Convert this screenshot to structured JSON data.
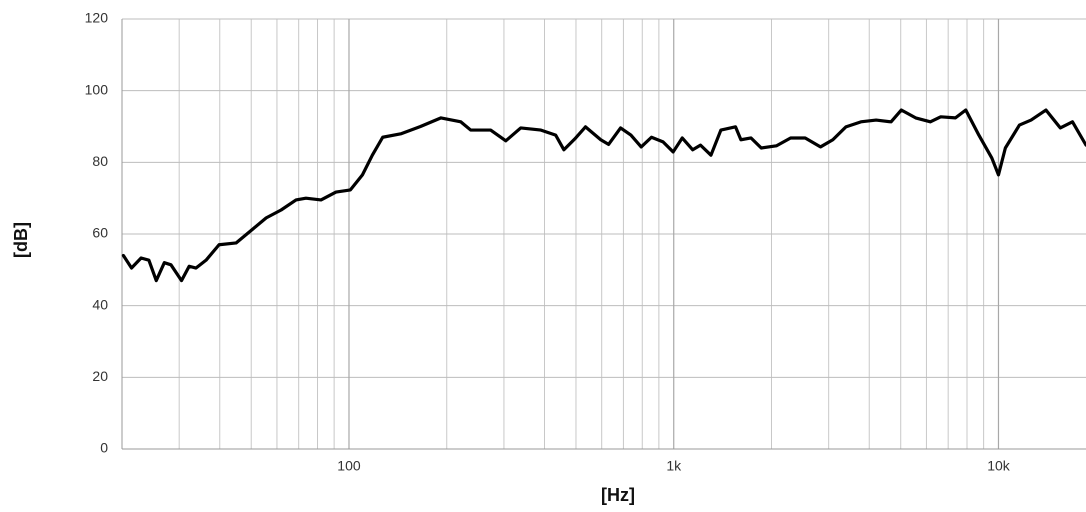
{
  "chart_data": {
    "type": "line",
    "xlabel": "[Hz]",
    "ylabel": "[dB]",
    "xscale": "log",
    "xlim": [
      20,
      18600
    ],
    "ylim": [
      0,
      120
    ],
    "xticks": [
      {
        "value": 100,
        "label": "100"
      },
      {
        "value": 1000,
        "label": "1k"
      },
      {
        "value": 10000,
        "label": "10k"
      }
    ],
    "xminor": [
      20,
      30,
      40,
      50,
      60,
      70,
      80,
      90,
      200,
      300,
      400,
      500,
      600,
      700,
      800,
      900,
      2000,
      3000,
      4000,
      5000,
      6000,
      7000,
      8000,
      9000
    ],
    "yticks": [
      0,
      20,
      40,
      60,
      80,
      100,
      120
    ],
    "grid": true,
    "x": [
      20.2,
      21.4,
      22.9,
      24.2,
      25.5,
      27,
      28.3,
      30.5,
      32.2,
      33.8,
      36.3,
      39.8,
      44.9,
      50,
      55.6,
      61.8,
      68.7,
      73.7,
      82,
      91.2,
      101,
      110,
      118,
      127,
      145,
      166,
      192,
      221,
      237,
      273,
      304,
      338,
      390,
      433,
      459,
      499,
      535,
      596,
      630,
      686,
      738,
      794,
      854,
      927,
      996,
      1062,
      1144,
      1209,
      1302,
      1397,
      1550,
      1610,
      1730,
      1860,
      2070,
      2290,
      2540,
      2830,
      3090,
      3390,
      3770,
      4200,
      4670,
      5020,
      5560,
      6170,
      6640,
      7370,
      7930,
      8700,
      9540,
      10000,
      10500,
      11600,
      12600,
      14000,
      15500,
      16900,
      18600
    ],
    "series": [
      {
        "color": "#000000",
        "values": [
          54,
          50.5,
          53.3,
          52.7,
          47,
          52,
          51.4,
          47,
          51,
          50.5,
          52.7,
          57,
          57.5,
          61,
          64.5,
          66.7,
          69.5,
          70,
          69.5,
          71.7,
          72.3,
          76.5,
          82,
          87,
          88,
          90,
          92.4,
          91.3,
          89,
          89,
          86,
          89.6,
          89,
          87.6,
          83.5,
          86.8,
          89.9,
          86.3,
          85,
          89.6,
          87.6,
          84.3,
          87,
          85.7,
          82.9,
          86.8,
          83.5,
          84.8,
          82,
          89,
          89.9,
          86.3,
          86.8,
          84,
          84.6,
          86.8,
          86.8,
          84.3,
          86.3,
          89.9,
          91.3,
          91.8,
          91.3,
          94.6,
          92.4,
          91.3,
          92.7,
          92.4,
          94.6,
          87.6,
          81.2,
          76.5,
          84,
          90.4,
          91.8,
          94.6,
          89.6,
          91.3,
          84.8
        ]
      }
    ]
  }
}
